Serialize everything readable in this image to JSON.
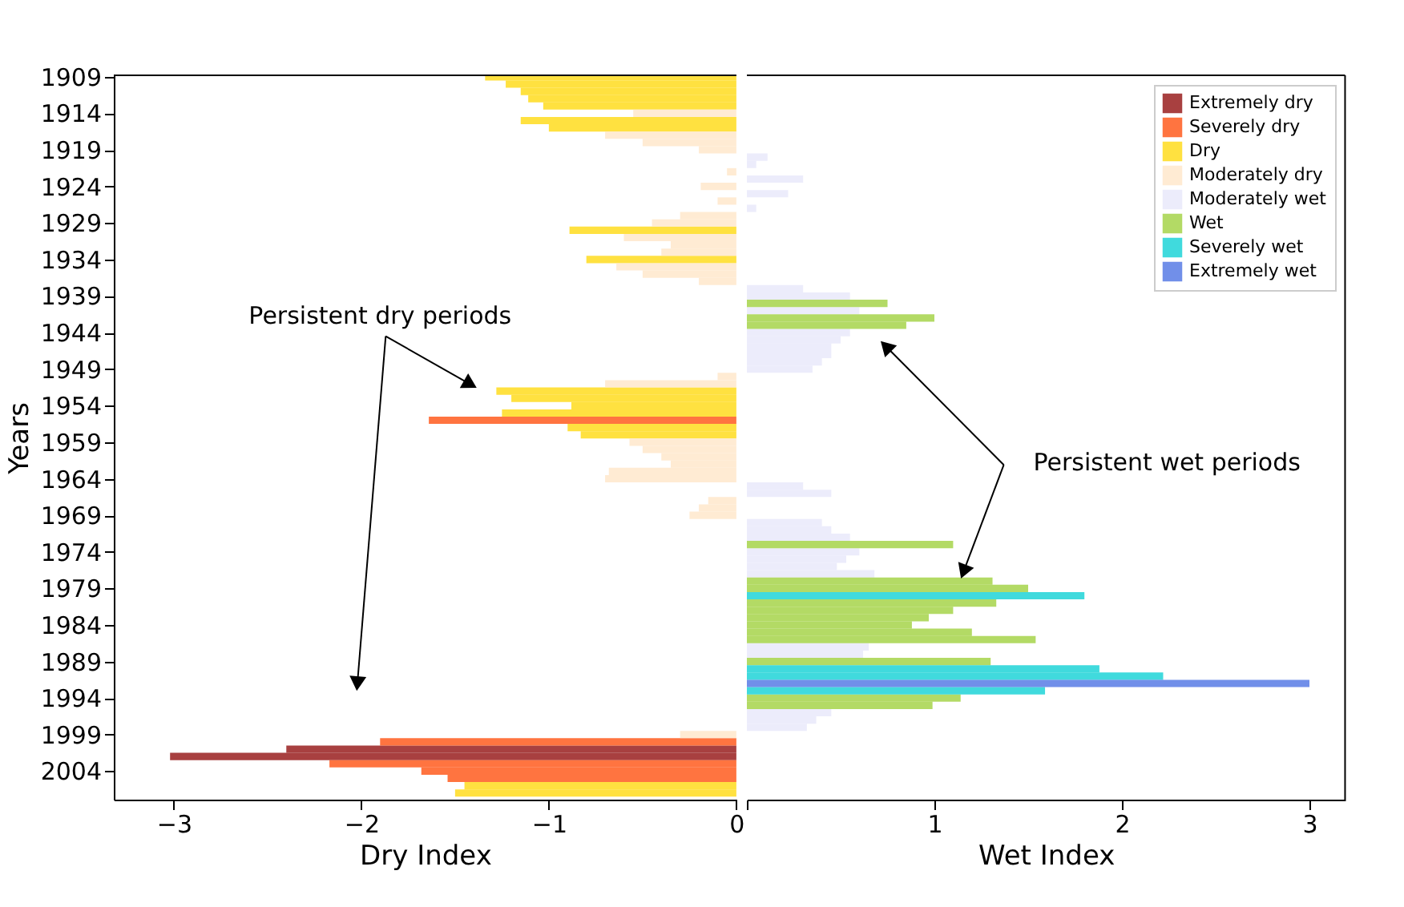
{
  "chart_data": [
    {
      "type": "bar",
      "orientation": "horizontal",
      "xlabel": "Dry Index",
      "ylabel": "Years",
      "xlim": [
        -3.32,
        0
      ],
      "xticks": [
        -3,
        -2,
        -1,
        0
      ],
      "ylim": [
        2007.9,
        1908.8
      ],
      "yticks": [
        1909,
        1914,
        1919,
        1924,
        1929,
        1934,
        1939,
        1944,
        1949,
        1954,
        1959,
        1964,
        1969,
        1974,
        1979,
        1984,
        1989,
        1994,
        1999,
        2004
      ],
      "legend": "top right",
      "annotations": [
        "Persistent dry periods"
      ],
      "series": [
        {
          "name": "Extremely dry",
          "color": "#8b0000",
          "x": [
            2001,
            2002
          ],
          "values": [
            -2.4,
            -3.02
          ]
        },
        {
          "name": "Severely dry",
          "color": "#ff4500",
          "x": [
            1956,
            2000,
            2003,
            2004,
            2005
          ],
          "values": [
            -1.64,
            -1.9,
            -2.17,
            -1.68,
            -1.54
          ]
        },
        {
          "name": "Dry",
          "color": "#ffd700",
          "x": [
            1909,
            1910,
            1911,
            1912,
            1913,
            1915,
            1916,
            1930,
            1934,
            1952,
            1953,
            1954,
            1955,
            1957,
            1958,
            2006,
            2007
          ],
          "values": [
            -1.34,
            -1.23,
            -1.15,
            -1.11,
            -1.03,
            -1.15,
            -1.0,
            -0.89,
            -0.8,
            -1.28,
            -1.2,
            -0.88,
            -1.25,
            -0.9,
            -0.83,
            -1.45,
            -1.5
          ]
        },
        {
          "name": "Moderately dry",
          "color": "#ffe4c4",
          "x": [
            1914,
            1917,
            1918,
            1919,
            1922,
            1924,
            1926,
            1928,
            1929,
            1931,
            1932,
            1933,
            1935,
            1936,
            1937,
            1950,
            1951,
            1959,
            1960,
            1961,
            1962,
            1963,
            1964,
            1967,
            1968,
            1969,
            1999
          ],
          "values": [
            -0.55,
            -0.7,
            -0.5,
            -0.2,
            -0.05,
            -0.19,
            -0.1,
            -0.3,
            -0.45,
            -0.6,
            -0.35,
            -0.4,
            -0.64,
            -0.5,
            -0.2,
            -0.1,
            -0.7,
            -0.57,
            -0.5,
            -0.4,
            -0.35,
            -0.68,
            -0.7,
            -0.15,
            -0.2,
            -0.25,
            -0.3
          ]
        }
      ]
    },
    {
      "type": "bar",
      "orientation": "horizontal",
      "xlabel": "Wet Index",
      "xlim": [
        0,
        3.19
      ],
      "xticks": [
        {
          "value": 0,
          "label": null
        },
        1,
        2,
        3
      ],
      "ylim": [
        2007.9,
        1908.8
      ],
      "tick_labels": "x",
      "legend": "top right",
      "annotations": [
        {
          "text": "Persistent wet periods",
          "x": 1.16,
          "y": 1976.4
        }
      ],
      "series": [
        {
          "name": "Moderately wet",
          "color": "#e6e6fa",
          "x": [
            1920,
            1921,
            1923,
            1925,
            1927,
            1938,
            1939,
            1941,
            1944,
            1945,
            1946,
            1947,
            1948,
            1949,
            1965,
            1966,
            1970,
            1971,
            1972,
            1974,
            1975,
            1976,
            1977,
            1987,
            1988,
            1996,
            1997,
            1998
          ],
          "values": [
            0.11,
            0.05,
            0.3,
            0.22,
            0.05,
            0.3,
            0.55,
            0.6,
            0.55,
            0.5,
            0.45,
            0.45,
            0.4,
            0.35,
            0.3,
            0.45,
            0.4,
            0.45,
            0.55,
            0.6,
            0.53,
            0.48,
            0.68,
            0.65,
            0.62,
            0.45,
            0.37,
            0.32
          ]
        },
        {
          "name": "Wet",
          "color": "#9acd32",
          "x": [
            1940,
            1942,
            1943,
            1973,
            1978,
            1979,
            1981,
            1982,
            1983,
            1984,
            1985,
            1986,
            1989,
            1994,
            1995
          ],
          "values": [
            0.75,
            1.0,
            0.85,
            1.1,
            1.31,
            1.5,
            1.33,
            1.1,
            0.97,
            0.88,
            1.2,
            1.54,
            1.3,
            1.14,
            0.99
          ]
        },
        {
          "name": "Severely wet",
          "color": "#00ced1",
          "x": [
            1980,
            1990,
            1991,
            1993
          ],
          "values": [
            1.8,
            1.88,
            2.22,
            1.59
          ]
        },
        {
          "name": "Extremely wet",
          "color": "#4169e1",
          "x": [
            1992
          ],
          "values": [
            3.0
          ]
        }
      ]
    }
  ]
}
